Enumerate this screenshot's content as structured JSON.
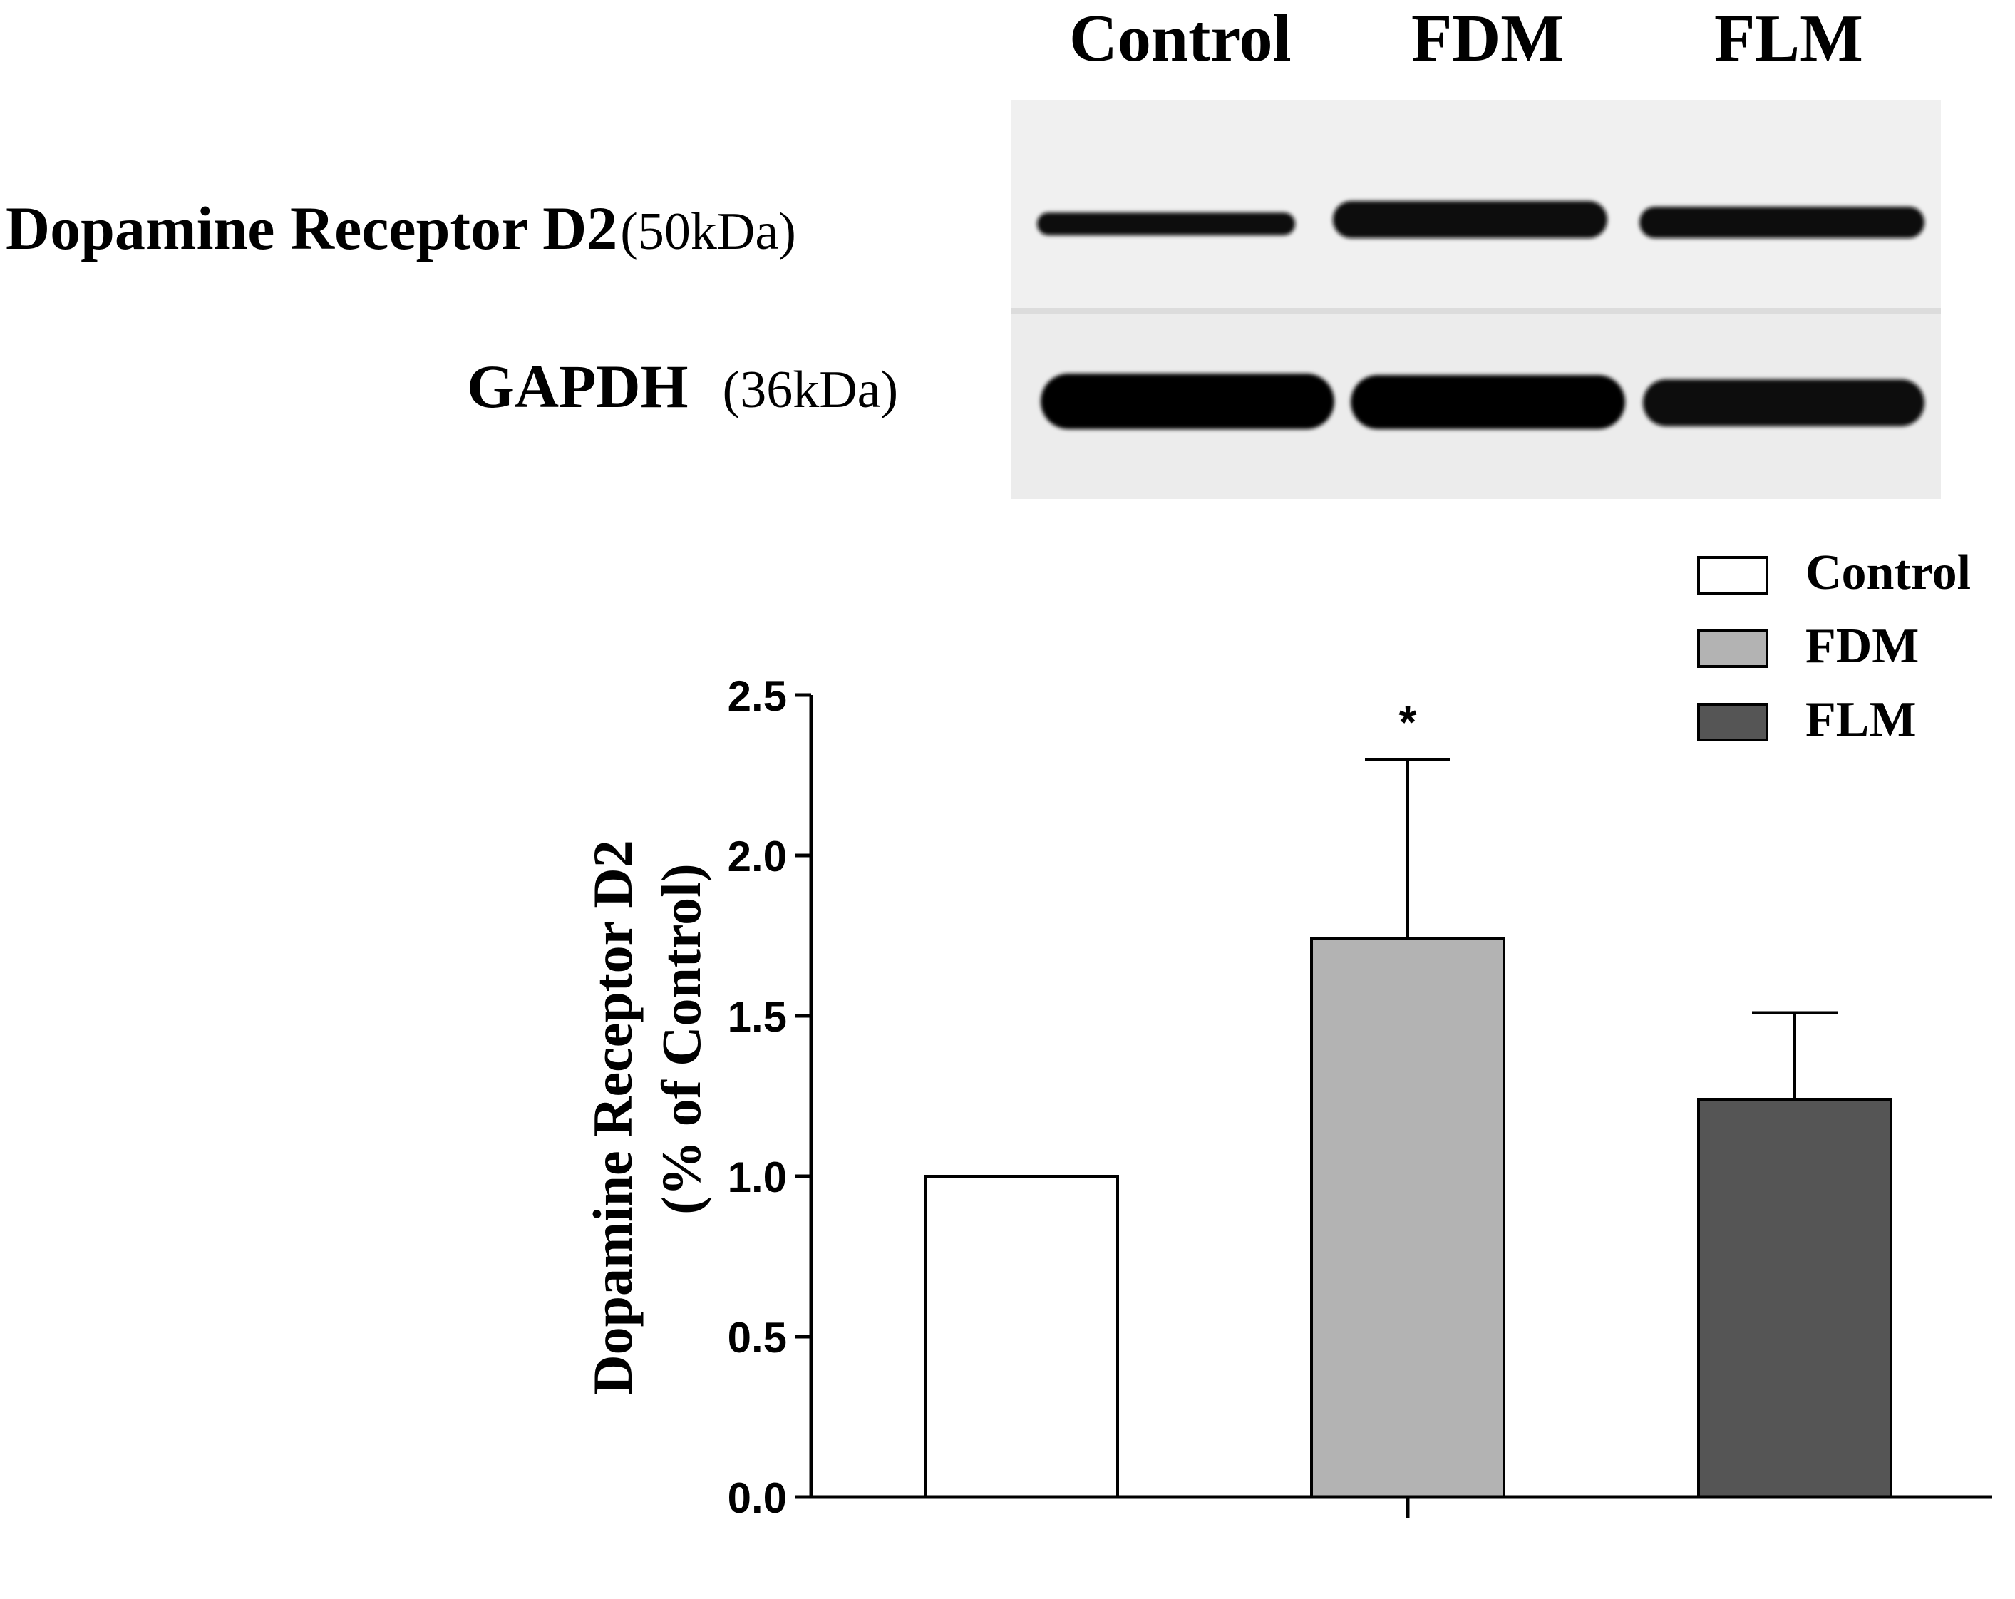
{
  "blot": {
    "lanes": [
      "Control",
      "FDM",
      "FLM"
    ],
    "rows": [
      {
        "name": "Dopamine Receptor D2",
        "size": "(50kDa)"
      },
      {
        "name": "GAPDH",
        "size": "(36kDa)"
      }
    ]
  },
  "chart_data": {
    "type": "bar",
    "categories": [
      "Control",
      "FDM",
      "FLM"
    ],
    "values": [
      1.0,
      1.74,
      1.24
    ],
    "errors": [
      0,
      0.56,
      0.27
    ],
    "significance": [
      "",
      "*",
      ""
    ],
    "colors": [
      "#ffffff",
      "#b3b3b3",
      "#555555"
    ],
    "ylabel_line1": "Dopamine Receptor D2",
    "ylabel_line2": "(% of Control)",
    "ylim": [
      0,
      2.5
    ],
    "yticks": [
      "0.0",
      "0.5",
      "1.0",
      "1.5",
      "2.0",
      "2.5"
    ],
    "legend": [
      "Control",
      "FDM",
      "FLM"
    ],
    "legend_position": "top-right"
  }
}
